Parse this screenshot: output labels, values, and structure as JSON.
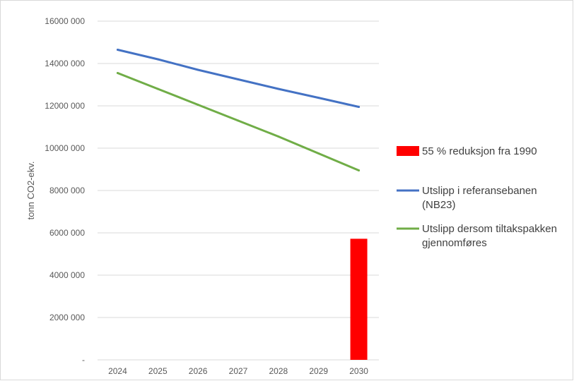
{
  "chart_data": {
    "type": "line",
    "title": "",
    "xlabel": "",
    "ylabel": "tonn CO2-ekv.",
    "ylim": [
      0,
      16000000
    ],
    "grid": true,
    "legend_position": "right",
    "y_ticks": [
      "-",
      "2000 000",
      "4000 000",
      "6000 000",
      "8000 000",
      "10000 000",
      "12000 000",
      "14000 000",
      "16000 000"
    ],
    "categories": [
      "2024",
      "2025",
      "2026",
      "2027",
      "2028",
      "2029",
      "2030"
    ],
    "series": [
      {
        "name": "55 % reduksjon fra 1990",
        "type": "bar",
        "color": "#ff0000",
        "values": [
          null,
          null,
          null,
          null,
          null,
          null,
          5720000
        ],
        "legend_lines": [
          "55 % reduksjon fra 1990"
        ]
      },
      {
        "name": "Utslipp i referansebanen (NB23)",
        "type": "line",
        "color": "#4472c4",
        "values": [
          14650000,
          14200000,
          13700000,
          13250000,
          12800000,
          12380000,
          11950000
        ],
        "legend_lines": [
          "Utslipp i referansebanen",
          "(NB23)"
        ]
      },
      {
        "name": "Utslipp dersom tiltakspakken gjennomføres",
        "type": "line",
        "color": "#70ad47",
        "values": [
          13550000,
          12800000,
          12050000,
          11300000,
          10550000,
          9750000,
          8950000
        ],
        "legend_lines": [
          "Utslipp dersom tiltakspakken",
          "gjennomføres"
        ]
      }
    ]
  }
}
